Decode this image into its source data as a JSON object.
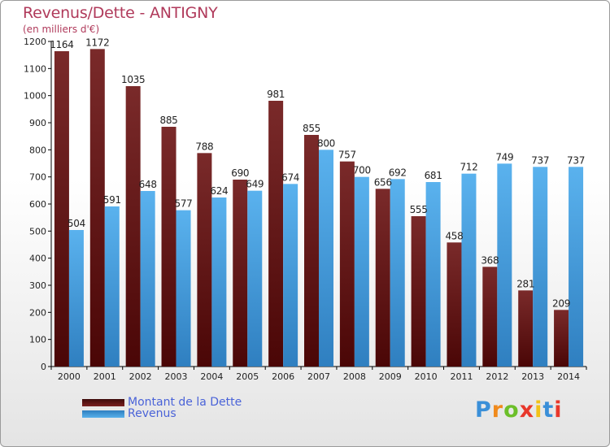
{
  "title": "Revenus/Dette - ANTIGNY",
  "subtitle": "(en milliers d'€)",
  "logo": {
    "letters": [
      "P",
      "r",
      "o",
      "x",
      "i",
      "t",
      "i"
    ],
    "colors": [
      "#3a8fd8",
      "#f08a1c",
      "#6cbf2a",
      "#e8372b",
      "#f2c218",
      "#3a8fd8",
      "#e8372b"
    ]
  },
  "colors": {
    "debt_top": "#7a2a2a",
    "debt_bottom": "#4a0606",
    "revenue_top": "#5ab2ee",
    "revenue_bottom": "#2f7fc0",
    "axis": "#000000",
    "grid": "#cccccc"
  },
  "chart_data": {
    "type": "bar",
    "title": "Revenus/Dette - ANTIGNY",
    "subtitle": "(en milliers d'€)",
    "xlabel": "",
    "ylabel": "",
    "categories": [
      "2000",
      "2001",
      "2002",
      "2003",
      "2004",
      "2005",
      "2006",
      "2007",
      "2008",
      "2009",
      "2010",
      "2011",
      "2012",
      "2013",
      "2014"
    ],
    "series": [
      {
        "name": "Montant de la Dette",
        "values": [
          1164,
          1172,
          1035,
          885,
          788,
          690,
          981,
          855,
          757,
          656,
          555,
          458,
          368,
          281,
          209
        ]
      },
      {
        "name": "Revenus",
        "values": [
          504,
          591,
          648,
          577,
          624,
          649,
          674,
          800,
          700,
          692,
          681,
          712,
          749,
          737,
          737
        ]
      }
    ],
    "ylim": [
      0,
      1200
    ],
    "yticks": [
      0,
      100,
      200,
      300,
      400,
      500,
      600,
      700,
      800,
      900,
      1000,
      1100,
      1200
    ],
    "grid": false,
    "legend": "bottom-left"
  }
}
